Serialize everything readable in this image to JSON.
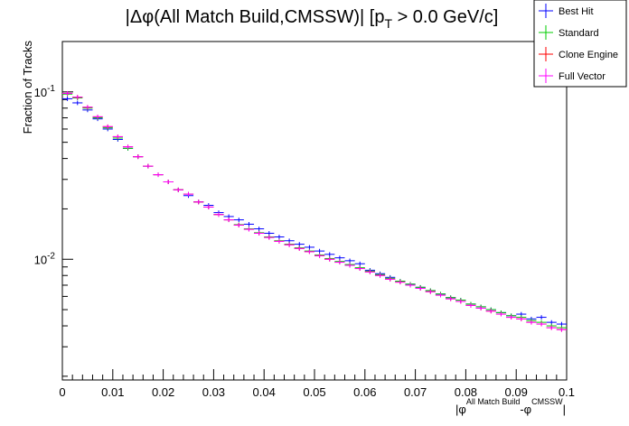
{
  "chart_data": {
    "type": "scatter",
    "title_parts": {
      "prefix": "|Δφ(All Match Build,CMSSW)| [p",
      "sub": "T",
      "suffix": " > 0.0 GeV/c]"
    },
    "ylabel": "Fraction of Tracks",
    "xlabel_parts": {
      "open": "|φ",
      "sup1": "All Match Build",
      "mid": "-φ",
      "sup2": "CMSSW",
      "close": "|"
    },
    "x_tick_labels": [
      "0",
      "0.01",
      "0.02",
      "0.03",
      "0.04",
      "0.05",
      "0.06",
      "0.07",
      "0.08",
      "0.09",
      "0.1"
    ],
    "y_tick_labels": [
      {
        "base": "10",
        "exp": "-1",
        "value": 0.1
      },
      {
        "base": "10",
        "exp": "-2",
        "value": 0.01
      }
    ],
    "xlim": [
      0,
      0.1
    ],
    "ylim": [
      0.0019,
      0.2
    ],
    "ylog": true,
    "bin_width": 0.002,
    "legend_position": "top-right",
    "series": [
      {
        "name": "Best Hit",
        "color": "#0000ff",
        "values": [
          0.091,
          0.086,
          0.078,
          0.069,
          0.06,
          0.052,
          0.046,
          0.041,
          0.036,
          0.032,
          0.029,
          0.026,
          0.024,
          0.022,
          0.021,
          0.019,
          0.018,
          0.0172,
          0.0162,
          0.0152,
          0.0143,
          0.0136,
          0.0129,
          0.0123,
          0.0118,
          0.0112,
          0.0107,
          0.0102,
          0.0098,
          0.0094,
          0.0086,
          0.0082,
          0.0078,
          0.0074,
          0.0071,
          0.0068,
          0.0065,
          0.0062,
          0.0059,
          0.0057,
          0.0054,
          0.0052,
          0.005,
          0.0048,
          0.0046,
          0.0047,
          0.0044,
          0.0045,
          0.0042,
          0.0041
        ]
      },
      {
        "name": "Standard",
        "color": "#00cc00",
        "values": [
          0.097,
          0.092,
          0.08,
          0.07,
          0.061,
          0.053,
          0.046,
          0.041,
          0.036,
          0.032,
          0.029,
          0.026,
          0.0245,
          0.022,
          0.0205,
          0.0185,
          0.0172,
          0.0161,
          0.0152,
          0.0144,
          0.0136,
          0.0129,
          0.0123,
          0.0117,
          0.0112,
          0.0106,
          0.0101,
          0.0097,
          0.0093,
          0.0089,
          0.0085,
          0.0081,
          0.0077,
          0.0074,
          0.0071,
          0.0068,
          0.0065,
          0.0062,
          0.0059,
          0.0057,
          0.0054,
          0.0052,
          0.005,
          0.0048,
          0.0046,
          0.0045,
          0.0043,
          0.0042,
          0.004,
          0.0039
        ]
      },
      {
        "name": "Clone Engine",
        "color": "#ff0000",
        "values": [
          0.098,
          0.093,
          0.081,
          0.071,
          0.062,
          0.054,
          0.047,
          0.041,
          0.036,
          0.032,
          0.029,
          0.026,
          0.0245,
          0.022,
          0.0205,
          0.0185,
          0.0172,
          0.016,
          0.0151,
          0.0143,
          0.0135,
          0.0128,
          0.0122,
          0.0116,
          0.0111,
          0.0105,
          0.01,
          0.0096,
          0.0092,
          0.0088,
          0.0084,
          0.008,
          0.0076,
          0.0073,
          0.007,
          0.0067,
          0.0064,
          0.0061,
          0.0058,
          0.0056,
          0.0053,
          0.0051,
          0.0049,
          0.0047,
          0.0045,
          0.0044,
          0.0042,
          0.0041,
          0.0039,
          0.0038
        ]
      },
      {
        "name": "Full Vector",
        "color": "#ff00ff",
        "values": [
          0.098,
          0.093,
          0.081,
          0.071,
          0.062,
          0.054,
          0.047,
          0.041,
          0.036,
          0.032,
          0.029,
          0.026,
          0.0245,
          0.022,
          0.0205,
          0.0185,
          0.0172,
          0.016,
          0.0151,
          0.0143,
          0.0135,
          0.0128,
          0.0122,
          0.0116,
          0.0111,
          0.0105,
          0.01,
          0.0096,
          0.0092,
          0.0088,
          0.0084,
          0.008,
          0.0076,
          0.0073,
          0.007,
          0.0067,
          0.0064,
          0.0061,
          0.0058,
          0.0056,
          0.0053,
          0.0051,
          0.0049,
          0.0047,
          0.0045,
          0.0044,
          0.0042,
          0.0041,
          0.0039,
          0.0038
        ]
      }
    ]
  }
}
